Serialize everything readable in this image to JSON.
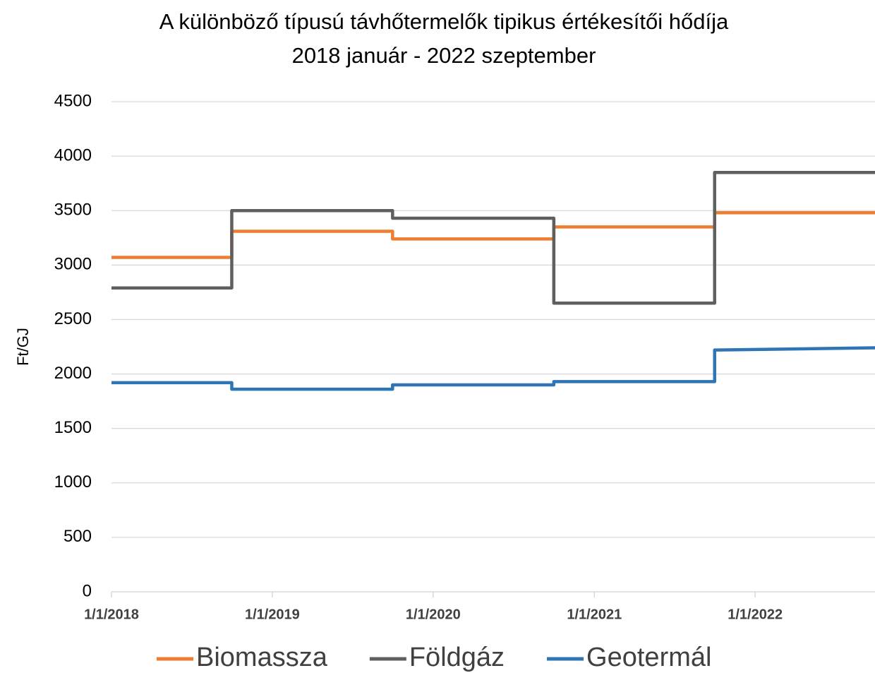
{
  "chart_data": {
    "type": "line",
    "title": "A különböző típusú távhőtermelők tipikus értékesítői hődíja",
    "subtitle": "2018 január - 2022 szeptember",
    "y_label": "Ft/GJ",
    "x": [
      "2018-01-01",
      "2018-10-01",
      "2018-10-01",
      "2019-10-01",
      "2019-10-01",
      "2020-10-01",
      "2020-10-01",
      "2021-10-01",
      "2021-10-01",
      "2022-09-30"
    ],
    "series": [
      {
        "name": "Biomassza",
        "color": "#ed7d31",
        "values": [
          3070,
          3070,
          3310,
          3310,
          3240,
          3240,
          3350,
          3350,
          3480,
          3480
        ]
      },
      {
        "name": "Földgáz",
        "color": "#5f5f5f",
        "values": [
          2790,
          2790,
          3500,
          3500,
          3430,
          3430,
          2650,
          2650,
          3850,
          3850
        ]
      },
      {
        "name": "Geotermál",
        "color": "#2e75b6",
        "values": [
          1920,
          1920,
          1860,
          1860,
          1900,
          1900,
          1930,
          1930,
          2220,
          2240
        ]
      }
    ],
    "xlim": [
      "2018-01-01",
      "2022-09-30"
    ],
    "xticks": [
      {
        "value": "2018-01-01",
        "label": "1/1/2018"
      },
      {
        "value": "2019-01-01",
        "label": "1/1/2019"
      },
      {
        "value": "2020-01-01",
        "label": "1/1/2020"
      },
      {
        "value": "2021-01-01",
        "label": "1/1/2021"
      },
      {
        "value": "2022-01-01",
        "label": "1/1/2022"
      }
    ],
    "ylim": [
      0,
      4500
    ],
    "yticks": [
      0,
      500,
      1000,
      1500,
      2000,
      2500,
      3000,
      3500,
      4000,
      4500
    ],
    "grid": true,
    "legend": "bottom"
  }
}
